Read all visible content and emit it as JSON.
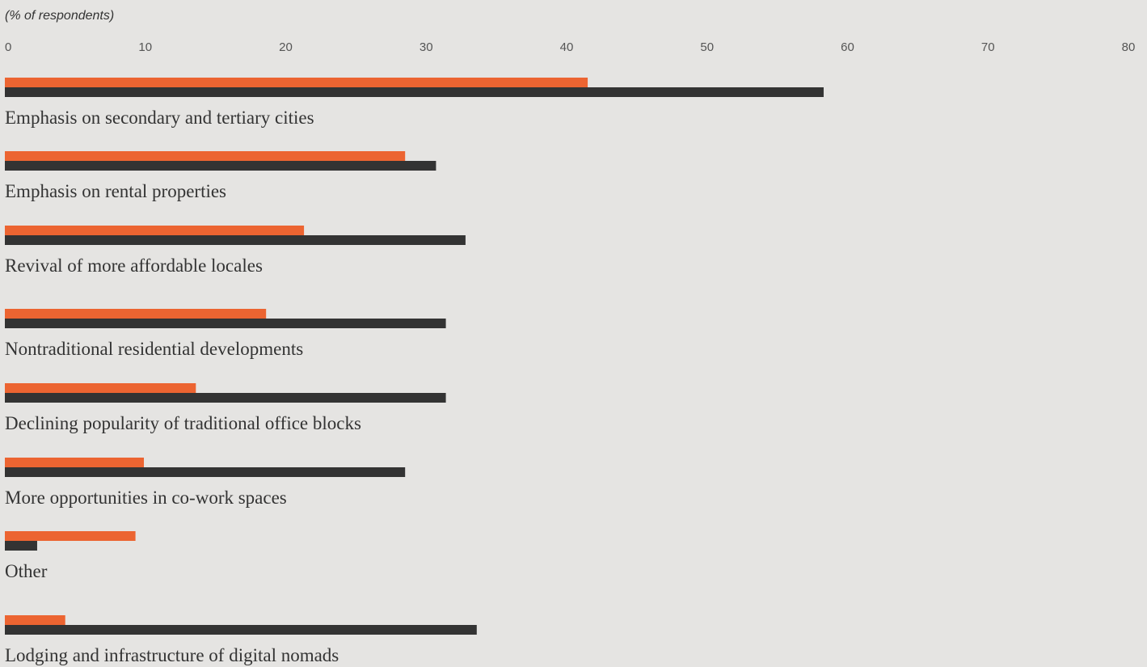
{
  "colors": {
    "background": "#e5e4e2",
    "series_1": "#ec6431",
    "series_2": "#333333"
  },
  "chart_data": {
    "type": "bar",
    "orientation": "horizontal",
    "unit_label": "(% of respondents)",
    "xlim": [
      0,
      80
    ],
    "ticks": [
      "0",
      "10",
      "20",
      "30",
      "40",
      "50",
      "60",
      "70",
      "80"
    ],
    "categories": [
      "Emphasis on secondary and tertiary cities",
      "Emphasis on rental properties",
      "Revival of more affordable locales",
      "Nontraditional residential developments",
      "Declining popularity of traditional office blocks",
      "More opportunities in co-work spaces",
      "Other",
      "Lodging and infrastructure of digital nomads"
    ],
    "series": [
      {
        "color": "#ec6431",
        "values": [
          41.5,
          28.5,
          21.3,
          18.6,
          13.6,
          9.9,
          9.3,
          4.3
        ]
      },
      {
        "color": "#333333",
        "values": [
          58.3,
          30.7,
          32.8,
          31.4,
          31.4,
          28.5,
          2.3,
          33.6
        ]
      }
    ],
    "grid": false,
    "legend": "none"
  }
}
